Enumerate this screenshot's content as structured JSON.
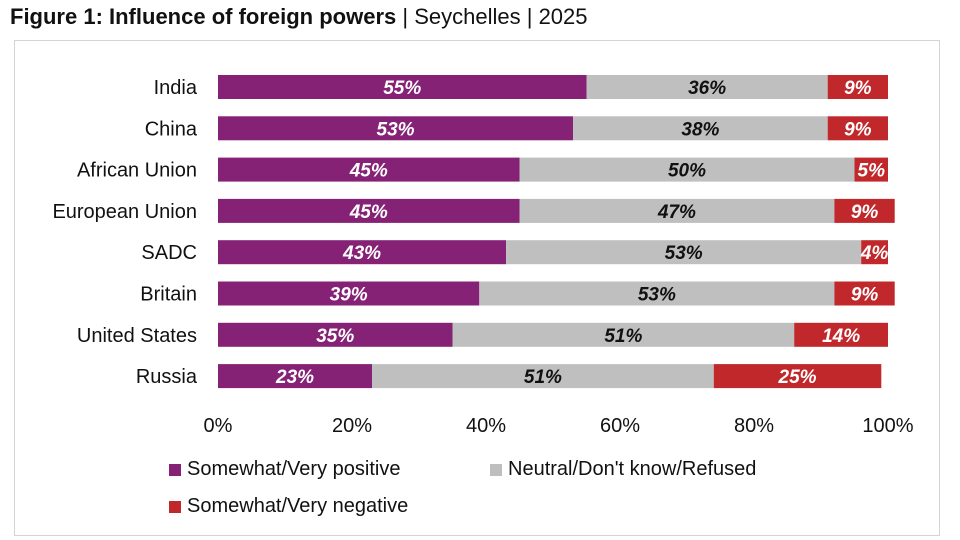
{
  "title": {
    "bold": "Figure 1: Influence of foreign powers",
    "rest": "Seychelles",
    "year": "2025"
  },
  "colors": {
    "positive": "#852276",
    "neutral": "#bfbfbf",
    "negative": "#c0282b"
  },
  "chart_data": {
    "type": "bar",
    "orientation": "horizontal",
    "stacked": true,
    "categories": [
      "India",
      "China",
      "African Union",
      "European Union",
      "SADC",
      "Britain",
      "United States",
      "Russia"
    ],
    "series": [
      {
        "name": "Somewhat/Very positive",
        "values": [
          55,
          53,
          45,
          45,
          43,
          39,
          35,
          23
        ]
      },
      {
        "name": "Neutral/Don't know/Refused",
        "values": [
          36,
          38,
          50,
          47,
          53,
          53,
          51,
          51
        ]
      },
      {
        "name": "Somewhat/Very negative",
        "values": [
          9,
          9,
          5,
          9,
          4,
          9,
          14,
          25
        ]
      }
    ],
    "xlim": [
      0,
      100
    ],
    "xticks": [
      "0%",
      "20%",
      "40%",
      "60%",
      "80%",
      "100%"
    ],
    "legend_position": "bottom",
    "grid": false
  }
}
